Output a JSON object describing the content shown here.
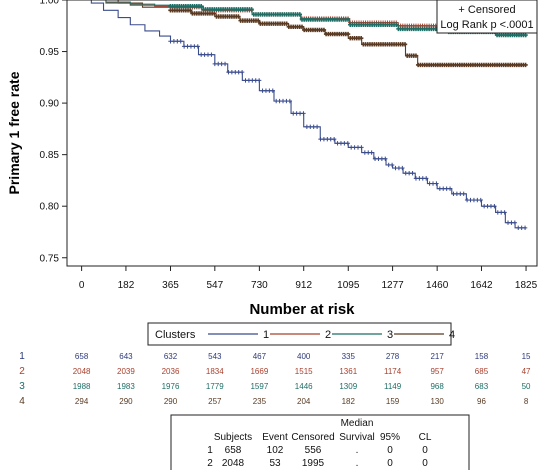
{
  "chart_data": {
    "type": "line",
    "ylabel": "Primary 1 free rate",
    "xlabel": "Number at risk",
    "xticks": [
      0,
      182,
      365,
      547,
      730,
      912,
      1095,
      1277,
      1460,
      1642,
      1825
    ],
    "yticks": [
      0.75,
      0.8,
      0.85,
      0.9,
      0.95,
      1.0
    ],
    "yticks_labels": [
      "0.75",
      "0.80",
      "0.85",
      "0.90",
      "0.95",
      "1.00"
    ],
    "xlim": [
      -60,
      1870
    ],
    "ylim": [
      0.742,
      1.0
    ],
    "legend": {
      "placement": "top-right",
      "lines": [
        "+ Censored",
        "Log Rank p <.0001"
      ]
    },
    "colors": {
      "1": "#3a4c8c",
      "2": "#a8402e",
      "3": "#1f6e66",
      "4": "#5a3a22"
    },
    "series": [
      {
        "name": "1",
        "x": [
          0,
          40,
          90,
          150,
          200,
          260,
          320,
          365,
          420,
          480,
          547,
          600,
          660,
          730,
          790,
          860,
          912,
          980,
          1040,
          1095,
          1150,
          1200,
          1250,
          1277,
          1320,
          1370,
          1420,
          1460,
          1520,
          1580,
          1642,
          1700,
          1740,
          1780,
          1825
        ],
        "y": [
          1.0,
          0.997,
          0.99,
          0.983,
          0.976,
          0.97,
          0.965,
          0.96,
          0.955,
          0.947,
          0.938,
          0.93,
          0.922,
          0.912,
          0.902,
          0.89,
          0.877,
          0.865,
          0.861,
          0.857,
          0.852,
          0.846,
          0.84,
          0.837,
          0.832,
          0.827,
          0.822,
          0.817,
          0.812,
          0.806,
          0.8,
          0.794,
          0.784,
          0.779,
          0.779
        ]
      },
      {
        "name": "2",
        "x": [
          0,
          100,
          200,
          300,
          365,
          500,
          700,
          900,
          1100,
          1300,
          1500,
          1700,
          1825
        ],
        "y": [
          1.0,
          0.997,
          0.995,
          0.994,
          0.993,
          0.99,
          0.986,
          0.982,
          0.978,
          0.975,
          0.972,
          0.969,
          0.968
        ]
      },
      {
        "name": "3",
        "x": [
          0,
          100,
          200,
          300,
          365,
          500,
          700,
          900,
          1100,
          1300,
          1500,
          1700,
          1825
        ],
        "y": [
          1.0,
          0.998,
          0.996,
          0.995,
          0.994,
          0.991,
          0.986,
          0.981,
          0.976,
          0.972,
          0.969,
          0.966,
          0.964
        ]
      },
      {
        "name": "4",
        "x": [
          0,
          150,
          250,
          365,
          450,
          547,
          650,
          730,
          850,
          912,
          1000,
          1095,
          1150,
          1200,
          1277,
          1330,
          1380,
          1460,
          1642,
          1825
        ],
        "y": [
          1.0,
          0.997,
          0.993,
          0.99,
          0.987,
          0.984,
          0.98,
          0.977,
          0.974,
          0.971,
          0.967,
          0.963,
          0.957,
          0.957,
          0.957,
          0.946,
          0.937,
          0.937,
          0.937,
          0.937
        ]
      }
    ]
  },
  "clusters_legend": {
    "title": "Clusters",
    "items": [
      "1",
      "2",
      "3",
      "4"
    ]
  },
  "risk_table": {
    "rows": [
      {
        "label": "1",
        "color": "#2c3a7a",
        "values": [
          "658",
          "643",
          "632",
          "543",
          "467",
          "400",
          "335",
          "278",
          "217",
          "158",
          "15"
        ]
      },
      {
        "label": "2",
        "color": "#a8402e",
        "values": [
          "2048",
          "2039",
          "2036",
          "1834",
          "1669",
          "1515",
          "1361",
          "1174",
          "957",
          "685",
          "47"
        ]
      },
      {
        "label": "3",
        "color": "#1f6e66",
        "values": [
          "1988",
          "1983",
          "1976",
          "1779",
          "1597",
          "1446",
          "1309",
          "1149",
          "968",
          "683",
          "50"
        ]
      },
      {
        "label": "4",
        "color": "#5a3a22",
        "values": [
          "294",
          "290",
          "290",
          "257",
          "235",
          "204",
          "182",
          "159",
          "130",
          "96",
          "8"
        ]
      }
    ]
  },
  "summary_table": {
    "header_top": "Median",
    "headers": [
      "Subjects",
      "Event",
      "Censored",
      "Survival",
      "95%",
      "CL"
    ],
    "rows": [
      {
        "label": "1",
        "color": "#2c3a7a",
        "values": [
          "658",
          "102",
          "556",
          ".",
          "0",
          "0"
        ]
      },
      {
        "label": "2",
        "color": "#a8402e",
        "values": [
          "2048",
          "53",
          "1995",
          ".",
          "0",
          "0"
        ]
      }
    ]
  }
}
